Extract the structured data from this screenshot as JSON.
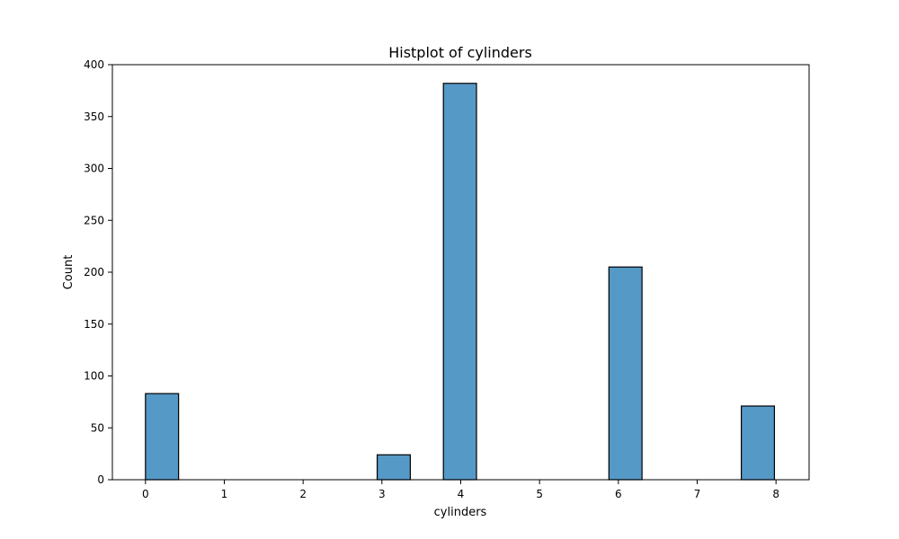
{
  "chart_data": {
    "type": "bar",
    "title": "Histplot of cylinders",
    "xlabel": "cylinders",
    "ylabel": "Count",
    "xlim": [
      -0.42,
      8.42
    ],
    "ylim": [
      0,
      400
    ],
    "xticks": [
      0,
      1,
      2,
      3,
      4,
      5,
      6,
      7,
      8
    ],
    "yticks": [
      0,
      50,
      100,
      150,
      200,
      250,
      300,
      350,
      400
    ],
    "bin_width": 0.42,
    "bins": [
      {
        "x0": 0.0,
        "x1": 0.42,
        "count": 83
      },
      {
        "x0": 2.94,
        "x1": 3.36,
        "count": 24
      },
      {
        "x0": 3.78,
        "x1": 4.2,
        "count": 382
      },
      {
        "x0": 5.88,
        "x1": 6.3,
        "count": 205
      },
      {
        "x0": 7.56,
        "x1": 7.98,
        "count": 71
      }
    ],
    "bar_color": "#5599c7",
    "edge_color": "#000000",
    "grid": false,
    "legend": "none"
  }
}
